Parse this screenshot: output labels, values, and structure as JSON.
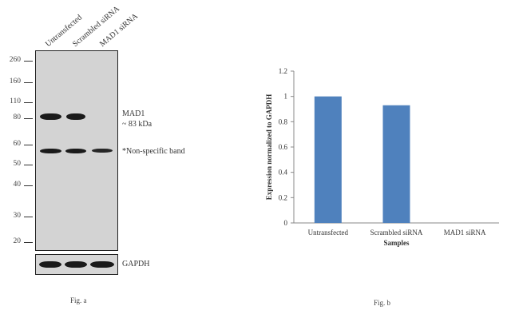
{
  "fig_a": {
    "lanes": [
      "Untransfected",
      "Scrambled siRNA",
      "MAD1 siRNA"
    ],
    "mw_markers": [
      "260",
      "160",
      "110",
      "80",
      "60",
      "50",
      "40",
      "30",
      "20"
    ],
    "labels": {
      "target": "MAD1",
      "target_size": "~ 83 kDa",
      "nonspecific": "*Non-specific band",
      "loading_control": "GAPDH"
    },
    "caption": "Fig. a",
    "band_intensity": {
      "MAD1": [
        1,
        1,
        0
      ],
      "non_specific": [
        1,
        1,
        0.85
      ],
      "GAPDH": [
        1,
        1,
        1
      ]
    }
  },
  "fig_b": {
    "caption": "Fig. b"
  },
  "chart_data": {
    "type": "bar",
    "categories": [
      "Untransfected",
      "Scrambled siRNA",
      "MAD1 siRNA"
    ],
    "values": [
      1.0,
      0.93,
      0.0
    ],
    "title": "",
    "xlabel": "Samples",
    "ylabel": "Expression  normalized to GAPDH",
    "ylim": [
      0,
      1.2
    ],
    "yticks": [
      "0",
      "0.2",
      "0.4",
      "0.6",
      "0.8",
      "1",
      "1.2"
    ],
    "bar_color": "#4f81bd",
    "grid": false
  }
}
